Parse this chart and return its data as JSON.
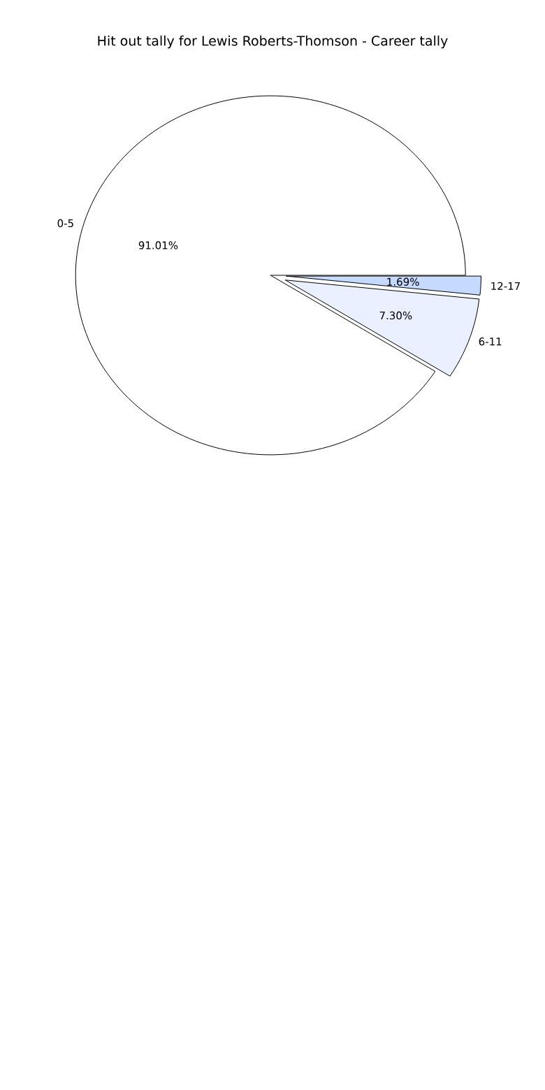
{
  "chart_data": {
    "type": "pie",
    "title": "Hit out tally for Lewis Roberts-Thomson - Career tally",
    "categories": [
      "0-5",
      "6-11",
      "12-17"
    ],
    "values": [
      91.01,
      7.3,
      1.69
    ],
    "value_labels": [
      "91.01%",
      "7.30%",
      "1.69%"
    ],
    "colors": [
      "#ffffff",
      "#eaf0ff",
      "#c6d9ff"
    ]
  }
}
